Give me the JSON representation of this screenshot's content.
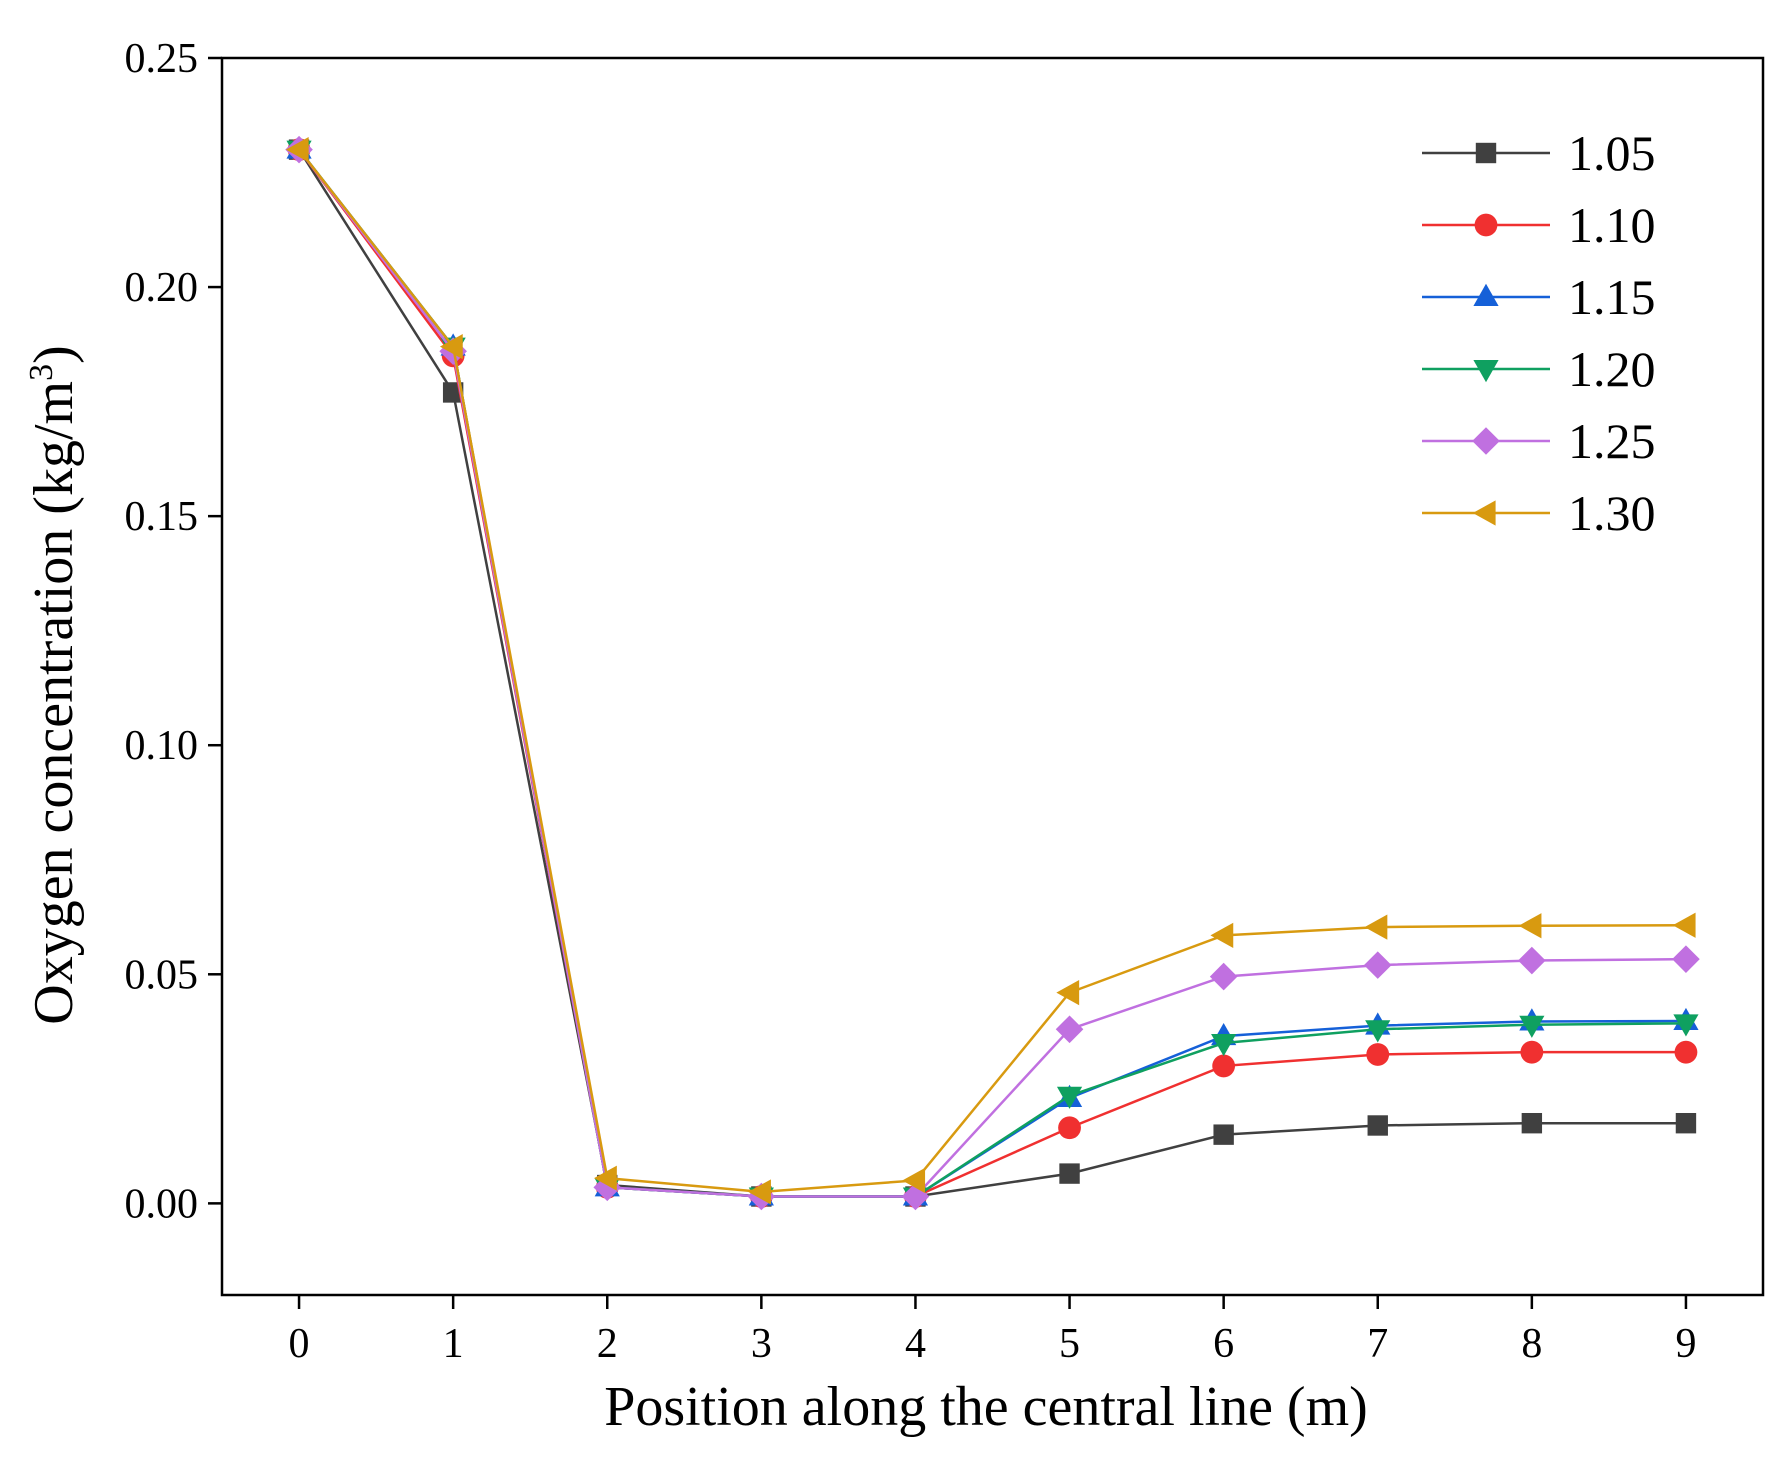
{
  "chart_data": {
    "type": "line",
    "title": "",
    "xlabel": "Position along the central line (m)",
    "ylabel": {
      "main": "Oxygen concentration (kg/m",
      "superscript": "3",
      "close": ")"
    },
    "xlim": [
      -0.5,
      9.5
    ],
    "ylim": [
      -0.02,
      0.25
    ],
    "x": [
      0,
      1,
      2,
      3,
      4,
      5,
      6,
      7,
      8,
      9
    ],
    "xtick_labels": [
      "0",
      "1",
      "2",
      "3",
      "4",
      "5",
      "6",
      "7",
      "8",
      "9"
    ],
    "yticks": [
      0.0,
      0.05,
      0.1,
      0.15,
      0.2,
      0.25
    ],
    "ytick_labels": [
      "0.00",
      "0.05",
      "0.10",
      "0.15",
      "0.20",
      "0.25"
    ],
    "grid": false,
    "legend_position": "top-right",
    "series": [
      {
        "name": "1.05",
        "color": "#404040",
        "marker": "square",
        "values": [
          0.23,
          0.177,
          0.004,
          0.0015,
          0.0015,
          0.0065,
          0.015,
          0.017,
          0.0175,
          0.0175
        ]
      },
      {
        "name": "1.10",
        "color": "#f03030",
        "marker": "circle",
        "values": [
          0.23,
          0.185,
          0.0035,
          0.0015,
          0.0015,
          0.0165,
          0.03,
          0.0325,
          0.033,
          0.033
        ]
      },
      {
        "name": "1.15",
        "color": "#1560d8",
        "marker": "triangle-up",
        "values": [
          0.23,
          0.187,
          0.0035,
          0.0015,
          0.0015,
          0.023,
          0.0365,
          0.0388,
          0.0397,
          0.0398
        ]
      },
      {
        "name": "1.20",
        "color": "#0fa060",
        "marker": "triangle-down",
        "values": [
          0.23,
          0.187,
          0.0035,
          0.0015,
          0.0015,
          0.0235,
          0.035,
          0.038,
          0.039,
          0.0393
        ]
      },
      {
        "name": "1.25",
        "color": "#c070e0",
        "marker": "diamond",
        "values": [
          0.23,
          0.186,
          0.0035,
          0.0015,
          0.0015,
          0.038,
          0.0495,
          0.052,
          0.053,
          0.0533
        ]
      },
      {
        "name": "1.30",
        "color": "#d89a10",
        "marker": "triangle-left",
        "values": [
          0.23,
          0.187,
          0.0055,
          0.0025,
          0.005,
          0.046,
          0.0585,
          0.0603,
          0.0606,
          0.0607
        ]
      }
    ]
  }
}
